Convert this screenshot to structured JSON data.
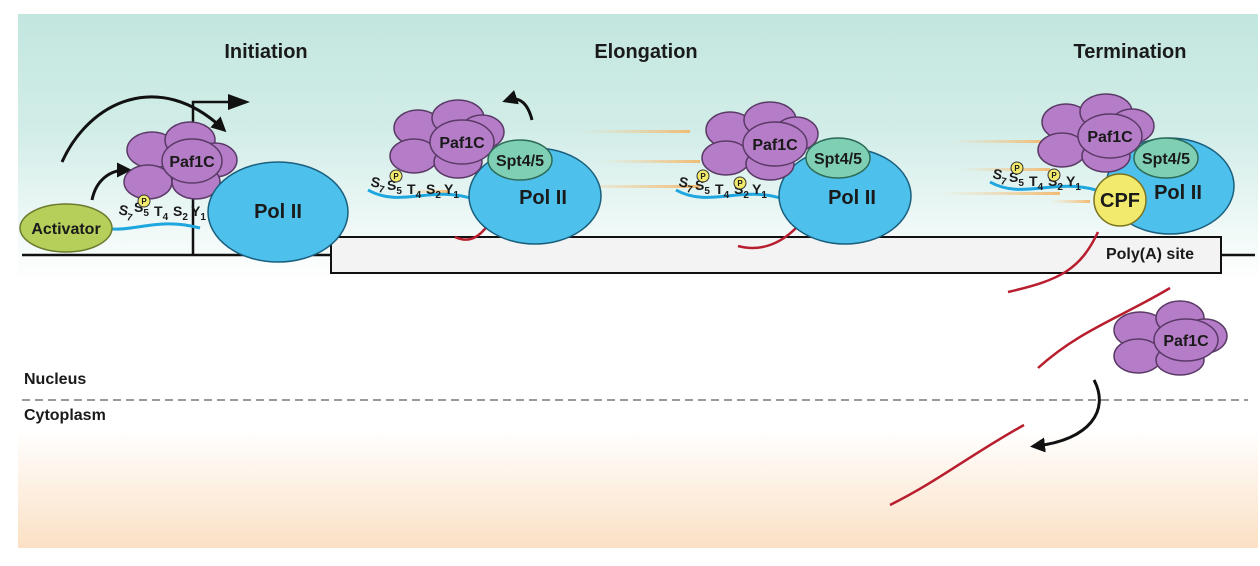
{
  "stages": {
    "initiation": "Initiation",
    "elongation": "Elongation",
    "termination": "Termination"
  },
  "molecules": {
    "activator": "Activator",
    "paf1c": "Paf1C",
    "pol2": "Pol II",
    "spt45": "Spt4/5",
    "cpf": "CPF",
    "phospho": "P"
  },
  "ctd": {
    "S7": "S",
    "S7_sub": "7",
    "S5": "S",
    "S5_sub": "5",
    "T4": "T",
    "T4_sub": "4",
    "S2": "S",
    "S2_sub": "2",
    "Y1": "Y",
    "Y1_sub": "1"
  },
  "gene": {
    "polya_site": "Poly(A) site"
  },
  "compartments": {
    "nucleus": "Nucleus",
    "cytoplasm": "Cytoplasm"
  },
  "colors": {
    "paf1c": "#b57cc7",
    "paf1c_stroke": "#5a3a66",
    "pol2": "#4dc1ec",
    "spt45": "#7fcfb4",
    "activator": "#b5cf5a",
    "cpf": "#f2ea6c",
    "ctd_tail": "#1ea6df",
    "rna": "#b81e2e",
    "nucleus_bg": "#c6e7e1",
    "cytoplasm_bg": "#fbe3c9"
  }
}
